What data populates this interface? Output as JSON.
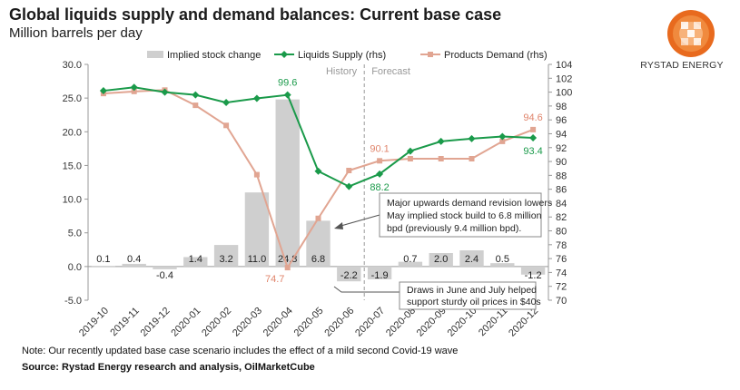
{
  "title": "Global liquids supply and demand balances: Current base case",
  "subtitle": "Million barrels per day",
  "note": "Note: Our recently updated base case scenario includes the effect of a mild second Covid-19 wave",
  "source": "Source: Rystad Energy research and analysis, OilMarketCube",
  "brand": {
    "name": "RYSTAD ENERGY",
    "accent": "#e86a1e",
    "accent_light": "#f4a66a"
  },
  "colors": {
    "bars": "#cfcfcf",
    "supply": "#1a9a4a",
    "demand": "#e1a592",
    "label_green": "#1a9a4a",
    "label_pink": "#e0856c"
  },
  "chart_data": {
    "type": "bar+line",
    "categories": [
      "2019-10",
      "2019-11",
      "2019-12",
      "2020-01",
      "2020-02",
      "2020-03",
      "2020-04",
      "2020-05",
      "2020-06",
      "2020-07",
      "2020-08",
      "2020-09",
      "2020-10",
      "2020-11",
      "2020-12"
    ],
    "series": [
      {
        "name": "Implied stock change",
        "type": "bar",
        "axis": "left",
        "values": [
          0.1,
          0.4,
          -0.4,
          1.4,
          3.2,
          11.0,
          24.8,
          6.8,
          -2.2,
          -1.9,
          0.7,
          2.0,
          2.4,
          0.5,
          -1.2
        ],
        "labels": [
          "0.1",
          "0.4",
          "-0.4",
          "1.4",
          "3.2",
          "11.0",
          "24.8",
          "6.8",
          "-2.2",
          "-1.9",
          "0.7",
          "2.0",
          "2.4",
          "0.5",
          "-1.2"
        ]
      },
      {
        "name": "Liquids Supply (rhs)",
        "type": "line",
        "axis": "right",
        "values": [
          100.2,
          100.7,
          100.0,
          99.6,
          98.5,
          99.1,
          99.6,
          88.6,
          86.4,
          88.2,
          91.5,
          92.9,
          93.3,
          93.6,
          93.4
        ]
      },
      {
        "name": "Products Demand (rhs)",
        "type": "line",
        "axis": "right",
        "values": [
          99.8,
          100.1,
          100.3,
          98.1,
          95.2,
          88.1,
          74.7,
          81.8,
          88.7,
          90.1,
          90.4,
          90.4,
          90.4,
          92.9,
          94.6
        ]
      }
    ],
    "point_labels": {
      "supply": [
        {
          "index": 6,
          "text": "99.6"
        },
        {
          "index": 9,
          "text": "88.2"
        },
        {
          "index": 14,
          "text": "93.4"
        }
      ],
      "demand": [
        {
          "index": 6,
          "text": "74.7"
        },
        {
          "index": 9,
          "text": "90.1"
        },
        {
          "index": 14,
          "text": "94.6"
        }
      ]
    },
    "left_axis": {
      "min": -5,
      "max": 30,
      "step": 5,
      "ticks": [
        "-5.0",
        "0.0",
        "5.0",
        "10.0",
        "15.0",
        "20.0",
        "25.0",
        "30.0"
      ]
    },
    "right_axis": {
      "min": 70,
      "max": 104,
      "step": 2,
      "ticks": [
        "70",
        "72",
        "74",
        "76",
        "78",
        "80",
        "82",
        "84",
        "86",
        "88",
        "90",
        "92",
        "94",
        "96",
        "98",
        "100",
        "102",
        "104"
      ]
    },
    "divider": {
      "between": [
        "2020-06",
        "2020-07"
      ],
      "left_label": "History",
      "right_label": "Forecast"
    },
    "annotations": [
      {
        "text": [
          "Major upwards demand revision lowers",
          "May implied stock build to 6.8 million",
          "bpd (previously 9.4 million bpd)."
        ],
        "points_to": "2020-05"
      },
      {
        "text": [
          "Draws in June and July helped",
          "support sturdy oil prices in $40s"
        ],
        "points_to": "2020-06"
      }
    ],
    "legend": "top"
  }
}
